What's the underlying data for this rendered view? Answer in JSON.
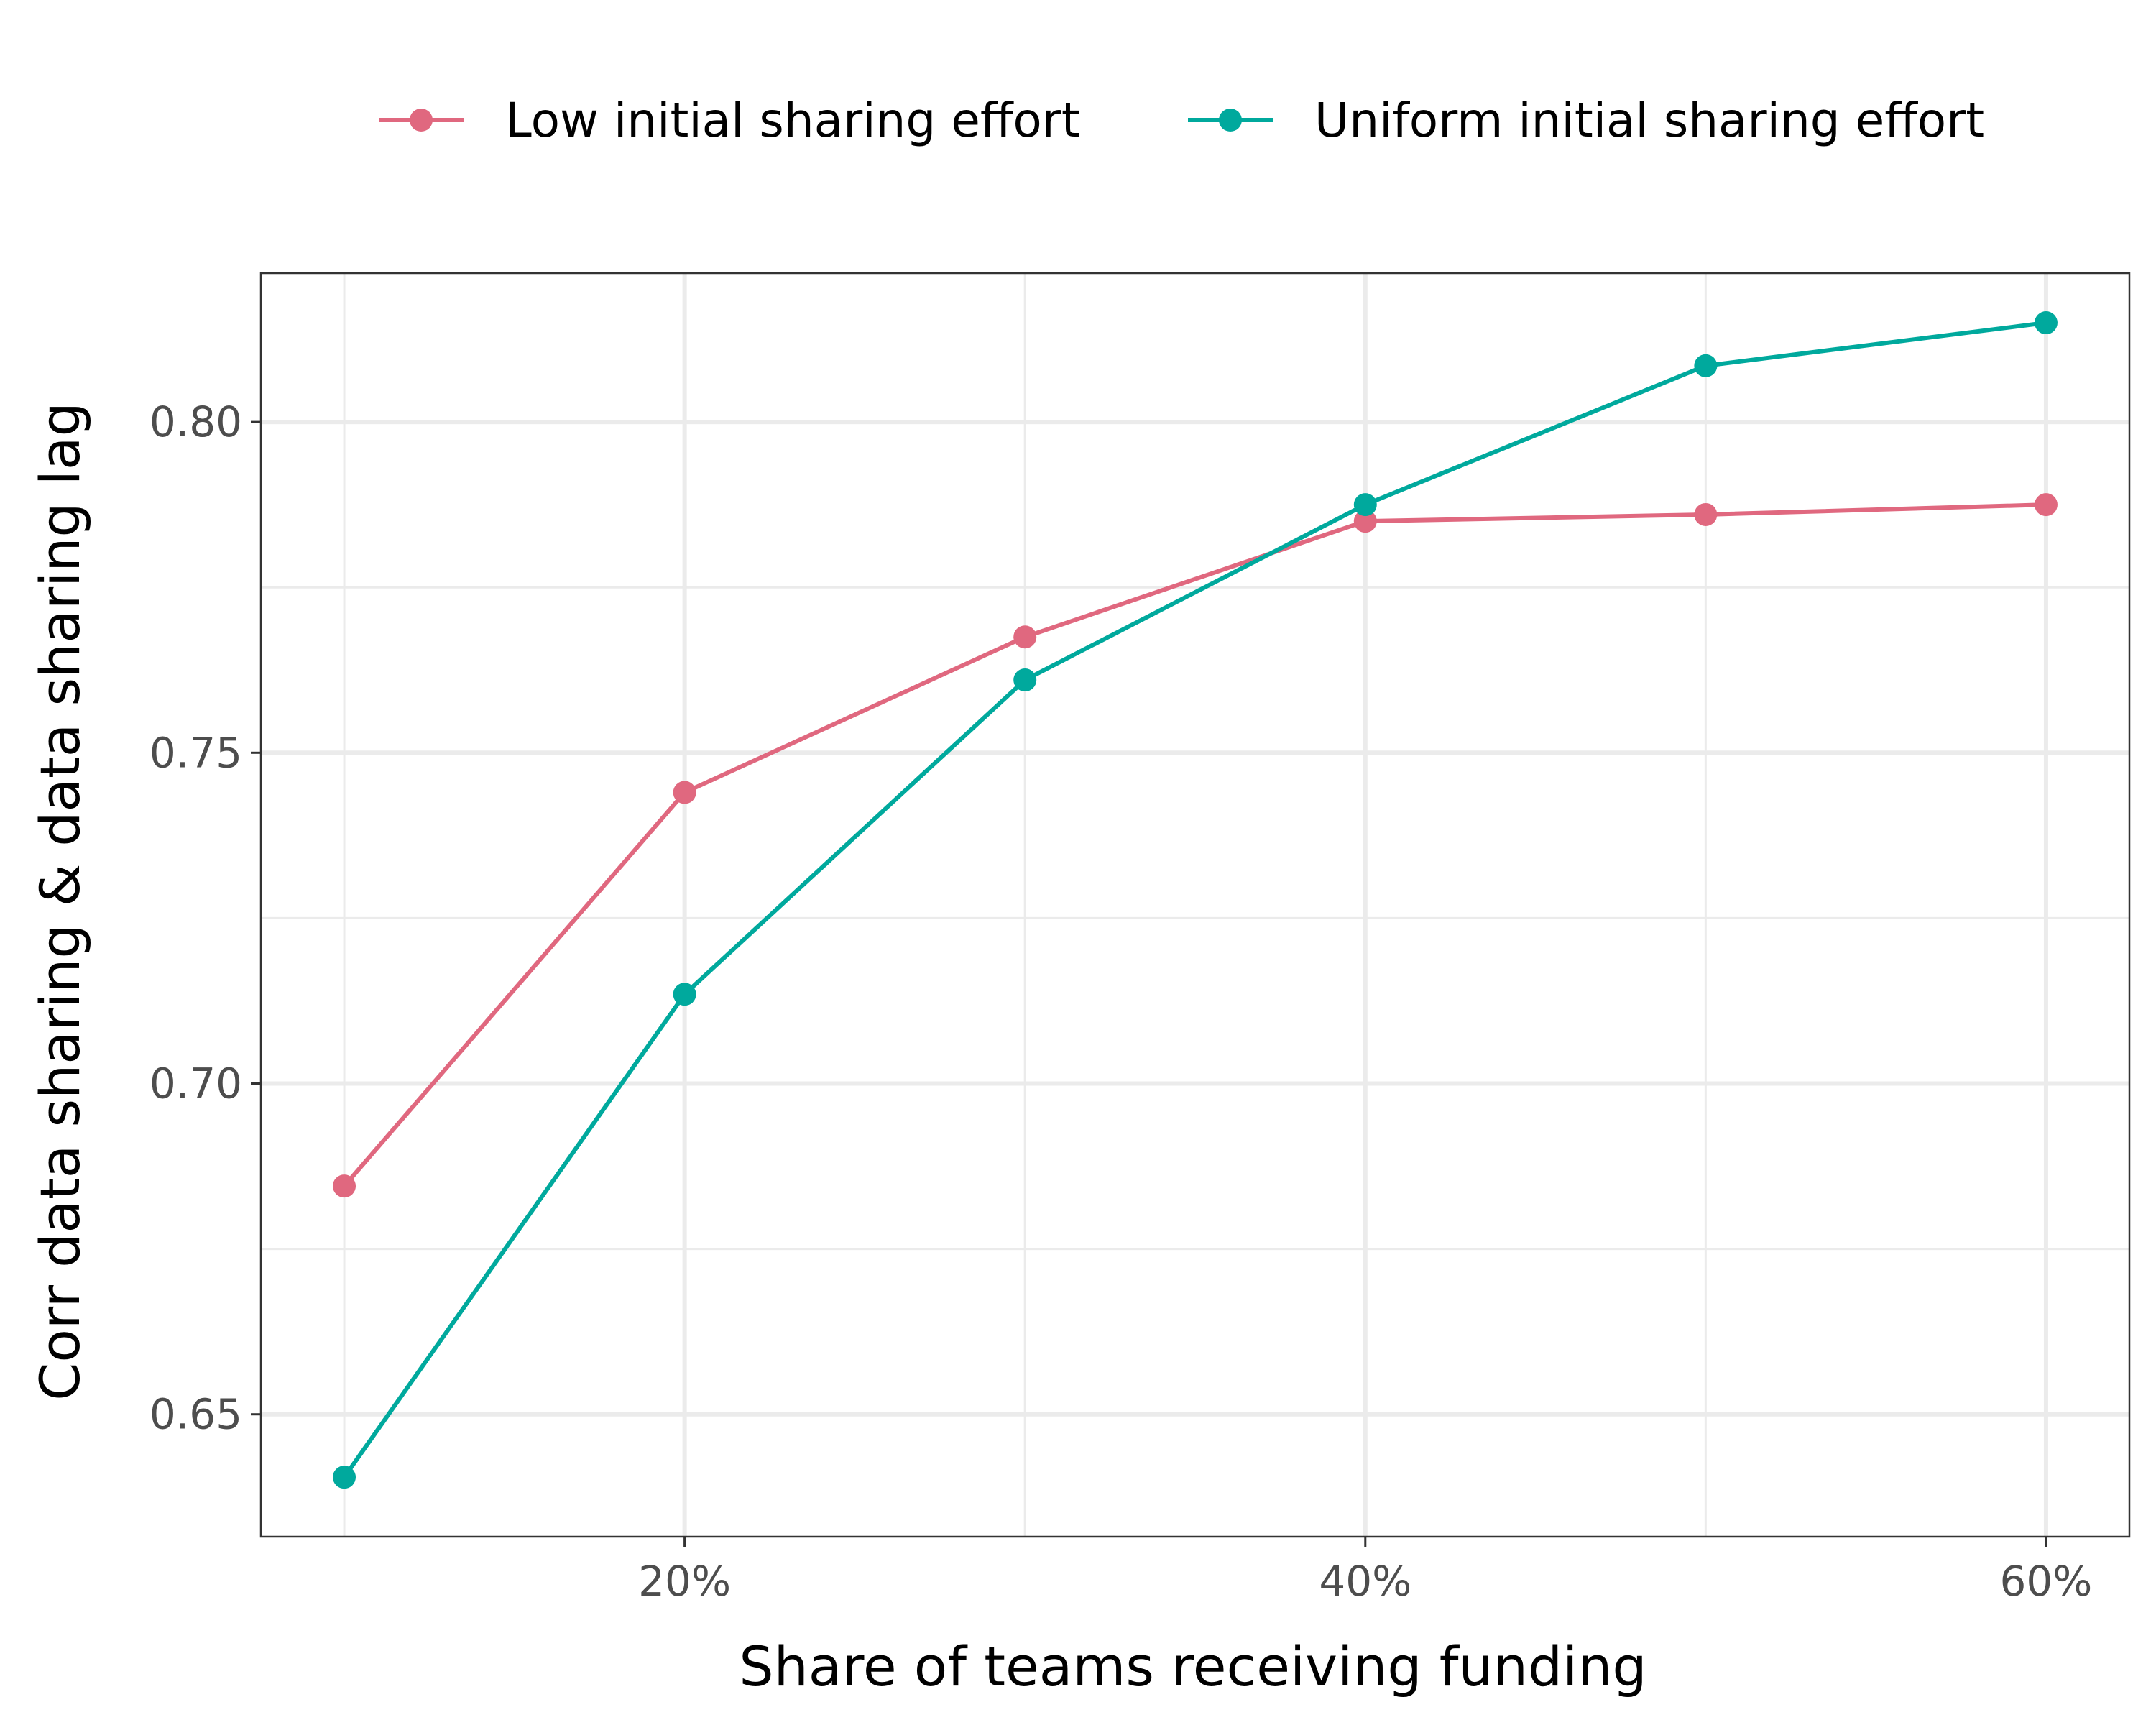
{
  "chart_data": {
    "type": "line",
    "xlabel": "Share of teams receiving funding",
    "ylabel": "Corr data sharing & data sharing lag",
    "x": [
      0.1,
      0.2,
      0.3,
      0.4,
      0.5,
      0.6
    ],
    "xlim": [
      0.0755,
      0.6245
    ],
    "ylim": [
      0.6315,
      0.8225
    ],
    "x_ticks": [
      {
        "value": 0.2,
        "label": "20%"
      },
      {
        "value": 0.4,
        "label": "40%"
      },
      {
        "value": 0.6,
        "label": "60%"
      }
    ],
    "x_minor": [
      0.1,
      0.3,
      0.5
    ],
    "y_ticks": [
      {
        "value": 0.65,
        "label": "0.65"
      },
      {
        "value": 0.7,
        "label": "0.70"
      },
      {
        "value": 0.75,
        "label": "0.75"
      },
      {
        "value": 0.8,
        "label": "0.80"
      }
    ],
    "y_minor": [
      0.675,
      0.725,
      0.775
    ],
    "grid": true,
    "legend_position": "top",
    "series": [
      {
        "name": "Low initial sharing effort",
        "color": "#E0687F",
        "values": [
          0.6845,
          0.744,
          0.7675,
          0.785,
          0.786,
          0.7875
        ]
      },
      {
        "name": "Uniform initial sharing effort",
        "color": "#00A99D",
        "values": [
          0.6405,
          0.7135,
          0.761,
          0.7875,
          0.8085,
          0.815
        ]
      }
    ]
  }
}
